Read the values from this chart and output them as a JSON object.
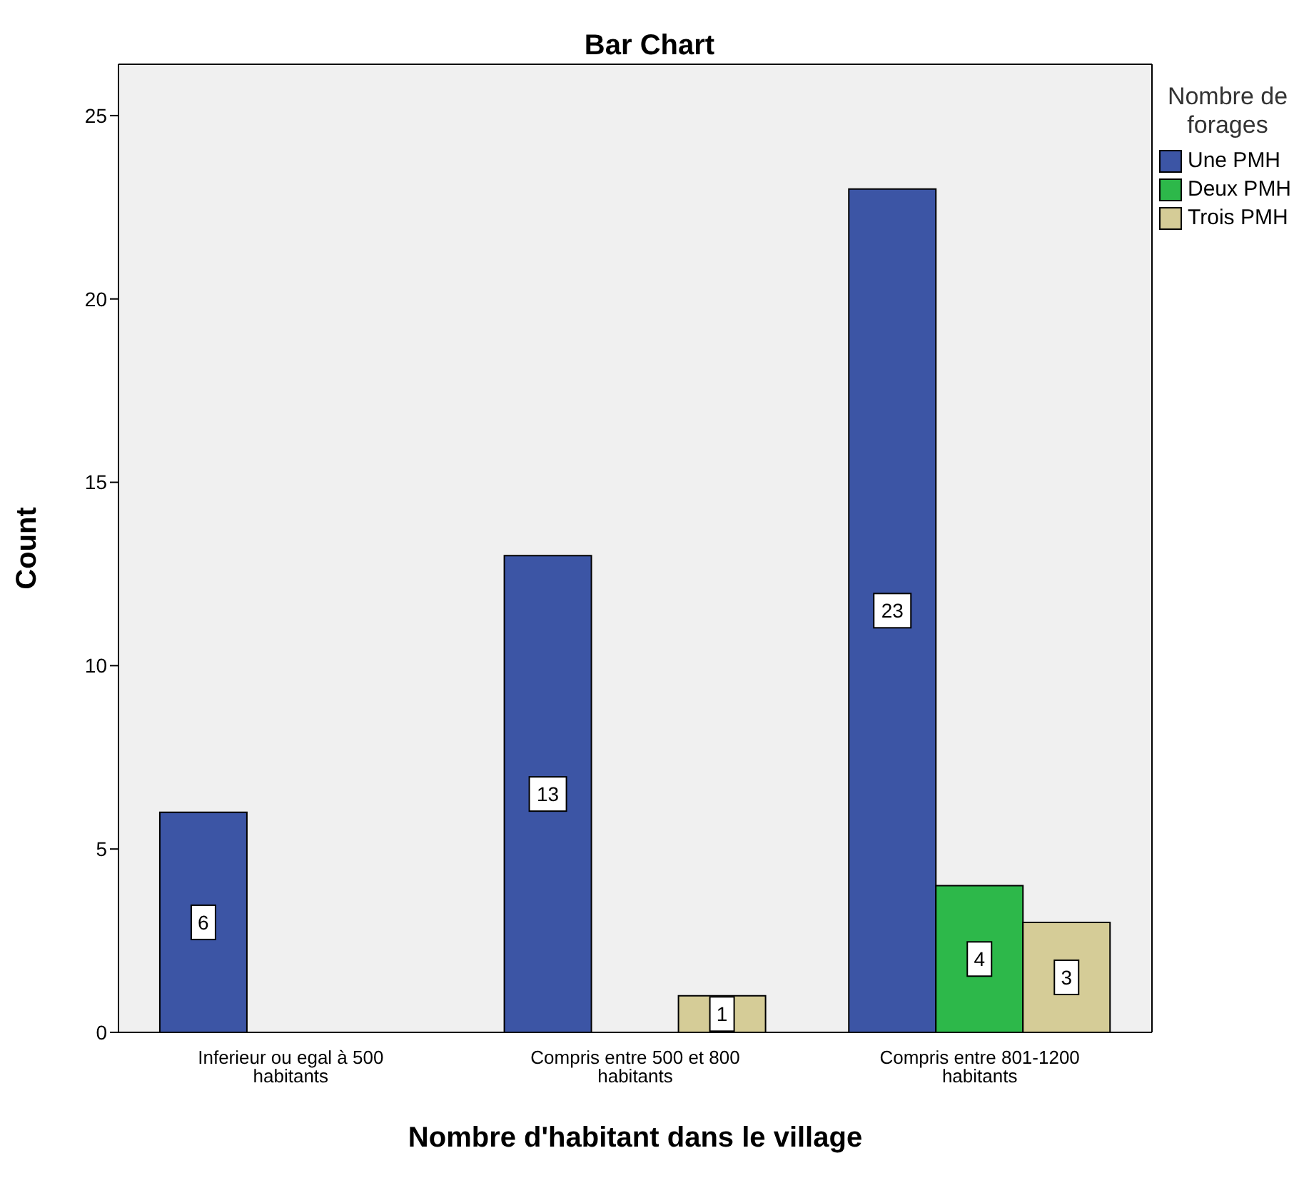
{
  "chart_data": {
    "type": "bar",
    "title": "Bar Chart",
    "xlabel": "Nombre d'habitant dans le village",
    "ylabel": "Count",
    "legend_title": "Nombre de forages",
    "categories": [
      "Inferieur ou egal à 500 habitants",
      "Compris entre 500 et 800 habitants",
      "Compris entre 801-1200 habitants"
    ],
    "series": [
      {
        "name": "Une PMH",
        "color": "#3c55a5",
        "values": [
          6,
          13,
          23
        ]
      },
      {
        "name": "Deux PMH",
        "color": "#2db84a",
        "values": [
          null,
          null,
          4
        ]
      },
      {
        "name": "Trois PMH",
        "color": "#d5cc97",
        "values": [
          null,
          1,
          3
        ]
      }
    ],
    "ylim": [
      0,
      26.4
    ],
    "yticks": [
      0,
      5,
      10,
      15,
      20,
      25
    ],
    "grid": false,
    "legend": "top right",
    "data_labels": true
  }
}
